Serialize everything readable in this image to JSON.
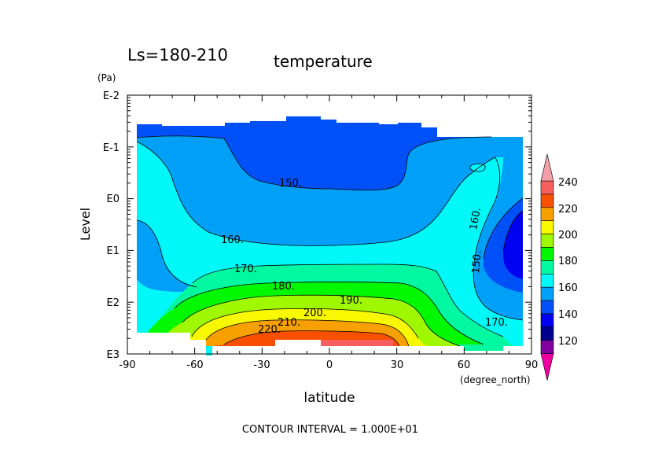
{
  "chart_data": {
    "type": "heatmap",
    "title": "temperature",
    "subtitle": "Ls=180-210",
    "xlabel": "latitude",
    "xunit": "(degree_north)",
    "ylabel": "Level",
    "yunit": "(Pa)",
    "footer": "CONTOUR INTERVAL = 1.000E+01",
    "xlim": [
      -90,
      90
    ],
    "x_ticks": [
      "-90",
      "-60",
      "-30",
      "0",
      "30",
      "60",
      "90"
    ],
    "y_ticks": [
      "E-2",
      "E-1",
      "E0",
      "E1",
      "E2",
      "E3"
    ],
    "y_scale": "log",
    "ylim_pa": [
      1000,
      0.01
    ],
    "contour_interval": 10,
    "contour_labels": [
      "150.",
      "160.",
      "170.",
      "180.",
      "190.",
      "200.",
      "210.",
      "220.",
      "160.",
      "150.",
      "170."
    ],
    "colorbar": {
      "labels": [
        "240",
        "220",
        "200",
        "180",
        "160",
        "140",
        "120"
      ],
      "levels": [
        {
          "range": ">240",
          "color": "#f4a0a8"
        },
        {
          "range": "230-240",
          "color": "#f86060"
        },
        {
          "range": "220-230",
          "color": "#f85000"
        },
        {
          "range": "210-220",
          "color": "#f8a000"
        },
        {
          "range": "200-210",
          "color": "#f8f800"
        },
        {
          "range": "190-200",
          "color": "#a0f800"
        },
        {
          "range": "180-190",
          "color": "#00f800"
        },
        {
          "range": "170-180",
          "color": "#00f8a0"
        },
        {
          "range": "160-170",
          "color": "#00f8f8"
        },
        {
          "range": "150-160",
          "color": "#00a0f8"
        },
        {
          "range": "140-150",
          "color": "#0050f8"
        },
        {
          "range": "130-140",
          "color": "#0000f0"
        },
        {
          "range": "120-130",
          "color": "#00008c"
        },
        {
          "range": "110-120",
          "color": "#8000a0"
        },
        {
          "range": "<110",
          "color": "#f000a0"
        }
      ]
    }
  }
}
